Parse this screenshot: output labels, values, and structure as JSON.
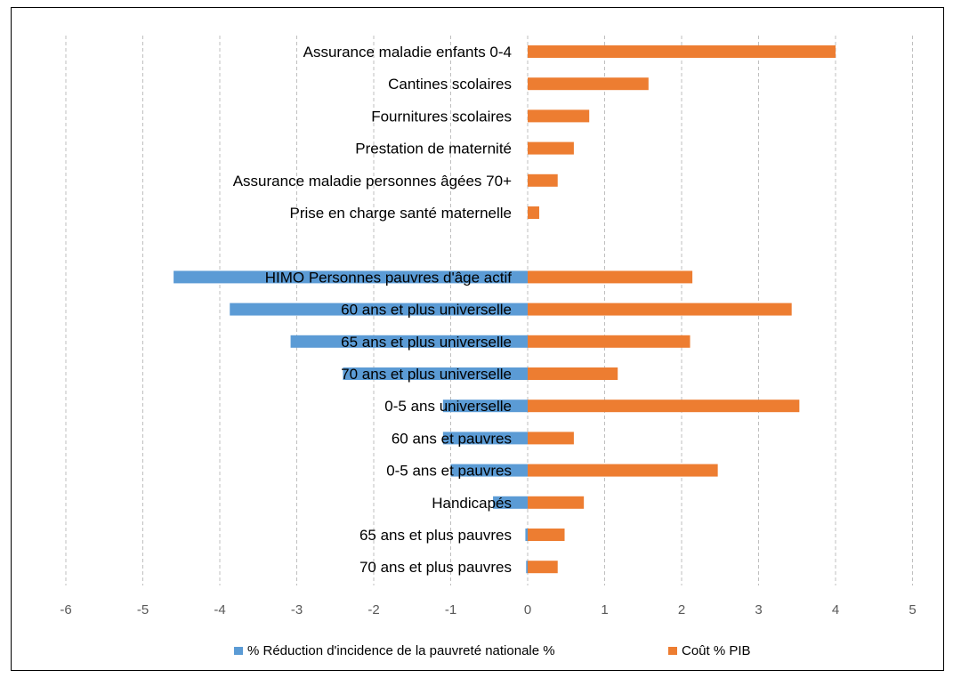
{
  "chart_data": {
    "type": "bar",
    "orientation": "horizontal",
    "categories": [
      "Assurance maladie enfants 0-4",
      "Cantines scolaires",
      "Fournitures scolaires",
      "Prestation de maternité",
      "Assurance maladie personnes âgées 70+",
      "Prise en charge santé maternelle",
      "",
      "HIMO Personnes pauvres d'âge actif",
      "60 ans et plus universelle",
      "65 ans et plus universelle",
      "70 ans et plus universelle",
      "0-5 ans universelle",
      "60 ans et pauvres",
      "0-5 ans et pauvres",
      "Handicapés",
      "65 ans et plus pauvres",
      "70 ans et plus pauvres"
    ],
    "series": [
      {
        "name": "% Réduction d'incidence de la pauvreté nationale %",
        "color": "#5B9BD5",
        "values": [
          null,
          null,
          null,
          null,
          null,
          null,
          null,
          -4.6,
          -3.87,
          -3.08,
          -2.4,
          -1.1,
          -1.1,
          -1.0,
          -0.45,
          -0.03,
          -0.02
        ]
      },
      {
        "name": "Coût % PIB",
        "color": "#ED7D31",
        "values": [
          4.0,
          1.57,
          0.8,
          0.6,
          0.39,
          0.15,
          null,
          2.14,
          3.43,
          2.11,
          1.17,
          3.53,
          0.6,
          2.47,
          0.73,
          0.48,
          0.39
        ]
      }
    ],
    "xlim": [
      -6,
      5
    ],
    "x_ticks": [
      -6,
      -5,
      -4,
      -3,
      -2,
      -1,
      0,
      1,
      2,
      3,
      4,
      5
    ],
    "grid": "vertical-dashed",
    "legend_position": "bottom"
  }
}
